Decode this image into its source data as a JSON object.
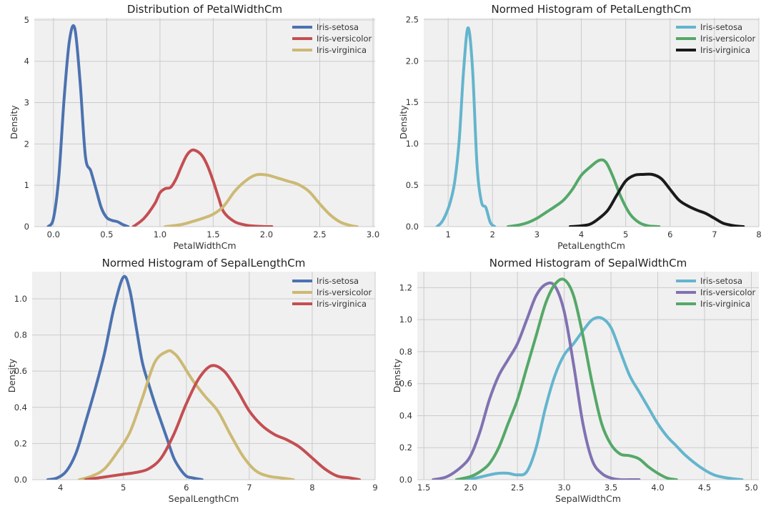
{
  "chart_data": [
    {
      "type": "line",
      "title": "Distribution of PetalWidthCm",
      "xlabel": "PetalWidthCm",
      "ylabel": "Density",
      "xlim": [
        -0.18,
        3.02
      ],
      "ylim": [
        0,
        5.05
      ],
      "xticks": [
        0.0,
        0.5,
        1.0,
        1.5,
        2.0,
        2.5,
        3.0
      ],
      "xtick_labels": [
        "0.0",
        "0.5",
        "1.0",
        "1.5",
        "2.0",
        "2.5",
        "3.0"
      ],
      "yticks": [
        0,
        1,
        2,
        3,
        4,
        5
      ],
      "ytick_labels": [
        "0",
        "1",
        "2",
        "3",
        "4",
        "5"
      ],
      "grid": true,
      "legend_position": "top-right",
      "series": [
        {
          "name": "Iris-setosa",
          "color": "#4c72b0",
          "x": [
            -0.05,
            0.0,
            0.05,
            0.1,
            0.15,
            0.2,
            0.25,
            0.3,
            0.35,
            0.4,
            0.45,
            0.5,
            0.55,
            0.6,
            0.65,
            0.7
          ],
          "y": [
            0.0,
            0.2,
            1.2,
            3.1,
            4.5,
            4.8,
            3.5,
            1.7,
            1.35,
            0.9,
            0.45,
            0.22,
            0.15,
            0.12,
            0.05,
            0.0
          ]
        },
        {
          "name": "Iris-versicolor",
          "color": "#c44e52",
          "x": [
            0.75,
            0.85,
            0.95,
            1.0,
            1.05,
            1.1,
            1.15,
            1.2,
            1.25,
            1.3,
            1.35,
            1.4,
            1.45,
            1.5,
            1.55,
            1.6,
            1.7,
            1.8,
            1.9,
            2.0,
            2.05
          ],
          "y": [
            0.0,
            0.2,
            0.55,
            0.82,
            0.92,
            0.95,
            1.15,
            1.45,
            1.72,
            1.85,
            1.82,
            1.7,
            1.45,
            1.1,
            0.7,
            0.35,
            0.12,
            0.04,
            0.01,
            0.0,
            0.0
          ]
        },
        {
          "name": "Iris-virginica",
          "color": "#ccb974",
          "x": [
            1.05,
            1.2,
            1.3,
            1.4,
            1.5,
            1.6,
            1.7,
            1.8,
            1.9,
            2.0,
            2.1,
            2.2,
            2.3,
            2.4,
            2.5,
            2.6,
            2.7,
            2.8,
            2.85
          ],
          "y": [
            0.0,
            0.05,
            0.12,
            0.2,
            0.3,
            0.5,
            0.85,
            1.1,
            1.25,
            1.25,
            1.18,
            1.1,
            1.02,
            0.85,
            0.55,
            0.28,
            0.1,
            0.02,
            0.0
          ]
        }
      ]
    },
    {
      "type": "line",
      "title": "Normed Histogram of PetalLengthCm",
      "xlabel": "PetalLengthCm",
      "ylabel": "Density",
      "xlim": [
        0.45,
        8.0
      ],
      "ylim": [
        0,
        2.52
      ],
      "xticks": [
        1,
        2,
        3,
        4,
        5,
        6,
        7,
        8
      ],
      "xtick_labels": [
        "1",
        "2",
        "3",
        "4",
        "5",
        "6",
        "7",
        "8"
      ],
      "yticks": [
        0.0,
        0.5,
        1.0,
        1.5,
        2.0,
        2.5
      ],
      "ytick_labels": [
        "0.0",
        "0.5",
        "1.0",
        "1.5",
        "2.0",
        "2.5"
      ],
      "grid": true,
      "legend_position": "top-right",
      "series": [
        {
          "name": "Iris-setosa",
          "color": "#64b5cd",
          "x": [
            0.75,
            0.85,
            0.95,
            1.05,
            1.15,
            1.25,
            1.35,
            1.45,
            1.55,
            1.65,
            1.75,
            1.85,
            1.95,
            2.05
          ],
          "y": [
            0.0,
            0.05,
            0.15,
            0.3,
            0.55,
            1.05,
            1.9,
            2.4,
            1.9,
            0.75,
            0.3,
            0.23,
            0.05,
            0.0
          ]
        },
        {
          "name": "Iris-versicolor",
          "color": "#55a868",
          "x": [
            2.35,
            2.6,
            2.8,
            3.0,
            3.2,
            3.4,
            3.6,
            3.8,
            4.0,
            4.2,
            4.4,
            4.55,
            4.7,
            4.9,
            5.1,
            5.3,
            5.5,
            5.75
          ],
          "y": [
            0.0,
            0.02,
            0.05,
            0.1,
            0.17,
            0.24,
            0.32,
            0.45,
            0.62,
            0.72,
            0.8,
            0.78,
            0.62,
            0.35,
            0.15,
            0.05,
            0.01,
            0.0
          ]
        },
        {
          "name": "Iris-virginica",
          "color": "#1a1a1a",
          "x": [
            3.75,
            4.0,
            4.2,
            4.4,
            4.6,
            4.8,
            5.0,
            5.2,
            5.4,
            5.6,
            5.8,
            6.0,
            6.2,
            6.4,
            6.6,
            6.8,
            7.0,
            7.2,
            7.45,
            7.65
          ],
          "y": [
            0.0,
            0.01,
            0.03,
            0.1,
            0.2,
            0.38,
            0.55,
            0.62,
            0.63,
            0.63,
            0.58,
            0.45,
            0.32,
            0.25,
            0.2,
            0.16,
            0.1,
            0.04,
            0.01,
            0.0
          ]
        }
      ]
    },
    {
      "type": "line",
      "title": "Normed Histogram of SepalLengthCm",
      "xlabel": "SepalLengthCm",
      "ylabel": "Density",
      "xlim": [
        3.55,
        9.0
      ],
      "ylim": [
        0,
        1.15
      ],
      "xticks": [
        4,
        5,
        6,
        7,
        8,
        9
      ],
      "xtick_labels": [
        "4",
        "5",
        "6",
        "7",
        "8",
        "9"
      ],
      "yticks": [
        0.0,
        0.2,
        0.4,
        0.6,
        0.8,
        1.0
      ],
      "ytick_labels": [
        "0.0",
        "0.2",
        "0.4",
        "0.6",
        "0.8",
        "1.0"
      ],
      "grid": true,
      "legend_position": "top-right",
      "series": [
        {
          "name": "Iris-setosa",
          "color": "#4c72b0",
          "x": [
            3.8,
            3.95,
            4.1,
            4.25,
            4.4,
            4.55,
            4.7,
            4.85,
            5.0,
            5.1,
            5.2,
            5.3,
            5.4,
            5.5,
            5.6,
            5.7,
            5.8,
            5.9,
            6.0,
            6.1,
            6.25
          ],
          "y": [
            0.0,
            0.01,
            0.05,
            0.15,
            0.32,
            0.5,
            0.7,
            0.95,
            1.12,
            1.05,
            0.85,
            0.65,
            0.53,
            0.42,
            0.32,
            0.22,
            0.12,
            0.06,
            0.02,
            0.01,
            0.0
          ]
        },
        {
          "name": "Iris-versicolor",
          "color": "#ccb974",
          "x": [
            4.3,
            4.5,
            4.7,
            4.9,
            5.1,
            5.3,
            5.5,
            5.7,
            5.8,
            5.9,
            6.1,
            6.3,
            6.5,
            6.7,
            6.9,
            7.1,
            7.3,
            7.5,
            7.7
          ],
          "y": [
            0.0,
            0.02,
            0.06,
            0.15,
            0.26,
            0.45,
            0.65,
            0.71,
            0.7,
            0.66,
            0.55,
            0.46,
            0.38,
            0.25,
            0.13,
            0.05,
            0.02,
            0.01,
            0.0
          ]
        },
        {
          "name": "Iris-virginica",
          "color": "#c44e52",
          "x": [
            4.4,
            4.6,
            4.8,
            5.0,
            5.2,
            5.4,
            5.6,
            5.8,
            6.0,
            6.2,
            6.4,
            6.6,
            6.8,
            7.0,
            7.2,
            7.4,
            7.6,
            7.8,
            8.0,
            8.2,
            8.4,
            8.6,
            8.75
          ],
          "y": [
            0.0,
            0.01,
            0.02,
            0.03,
            0.04,
            0.06,
            0.12,
            0.25,
            0.42,
            0.56,
            0.63,
            0.6,
            0.5,
            0.38,
            0.3,
            0.25,
            0.22,
            0.18,
            0.12,
            0.06,
            0.02,
            0.01,
            0.0
          ]
        }
      ]
    },
    {
      "type": "line",
      "title": "Normed Histogram of SepalWidthCm",
      "xlabel": "SepalWidthCm",
      "ylabel": "Density",
      "xlim": [
        1.43,
        5.08
      ],
      "ylim": [
        0,
        1.3
      ],
      "xticks": [
        1.5,
        2.0,
        2.5,
        3.0,
        3.5,
        4.0,
        4.5,
        5.0
      ],
      "xtick_labels": [
        "1.5",
        "2.0",
        "2.5",
        "3.0",
        "3.5",
        "4.0",
        "4.5",
        "5.0"
      ],
      "yticks": [
        0.0,
        0.2,
        0.4,
        0.6,
        0.8,
        1.0,
        1.2
      ],
      "ytick_labels": [
        "0.0",
        "0.2",
        "0.4",
        "0.6",
        "0.8",
        "1.0",
        "1.2"
      ],
      "grid": true,
      "legend_position": "top-right",
      "series": [
        {
          "name": "Iris-setosa",
          "color": "#64b5cd",
          "x": [
            1.9,
            2.05,
            2.2,
            2.3,
            2.4,
            2.5,
            2.6,
            2.7,
            2.8,
            2.9,
            3.0,
            3.1,
            3.2,
            3.3,
            3.4,
            3.5,
            3.6,
            3.7,
            3.8,
            3.9,
            4.0,
            4.1,
            4.2,
            4.3,
            4.45,
            4.6,
            4.75,
            4.9
          ],
          "y": [
            0.0,
            0.01,
            0.03,
            0.04,
            0.04,
            0.03,
            0.05,
            0.2,
            0.45,
            0.65,
            0.78,
            0.85,
            0.93,
            1.0,
            1.01,
            0.95,
            0.8,
            0.65,
            0.55,
            0.45,
            0.35,
            0.27,
            0.21,
            0.15,
            0.08,
            0.03,
            0.01,
            0.0
          ]
        },
        {
          "name": "Iris-versicolor",
          "color": "#8172b2",
          "x": [
            1.6,
            1.75,
            1.9,
            2.0,
            2.1,
            2.2,
            2.3,
            2.4,
            2.5,
            2.6,
            2.7,
            2.8,
            2.9,
            3.0,
            3.1,
            3.2,
            3.3,
            3.4,
            3.5,
            3.6,
            3.7,
            3.8
          ],
          "y": [
            0.0,
            0.02,
            0.08,
            0.15,
            0.3,
            0.5,
            0.65,
            0.75,
            0.85,
            1.0,
            1.15,
            1.22,
            1.21,
            1.05,
            0.72,
            0.35,
            0.12,
            0.04,
            0.01,
            0.0,
            0.0,
            0.0
          ]
        },
        {
          "name": "Iris-virginica",
          "color": "#55a868",
          "x": [
            1.85,
            2.0,
            2.1,
            2.2,
            2.3,
            2.4,
            2.5,
            2.6,
            2.7,
            2.8,
            2.9,
            3.0,
            3.1,
            3.2,
            3.3,
            3.4,
            3.5,
            3.6,
            3.7,
            3.8,
            3.9,
            4.0,
            4.1,
            4.2
          ],
          "y": [
            0.0,
            0.02,
            0.05,
            0.1,
            0.2,
            0.35,
            0.5,
            0.7,
            0.9,
            1.1,
            1.22,
            1.25,
            1.15,
            0.9,
            0.6,
            0.35,
            0.22,
            0.16,
            0.15,
            0.13,
            0.08,
            0.04,
            0.01,
            0.0
          ]
        }
      ]
    }
  ]
}
